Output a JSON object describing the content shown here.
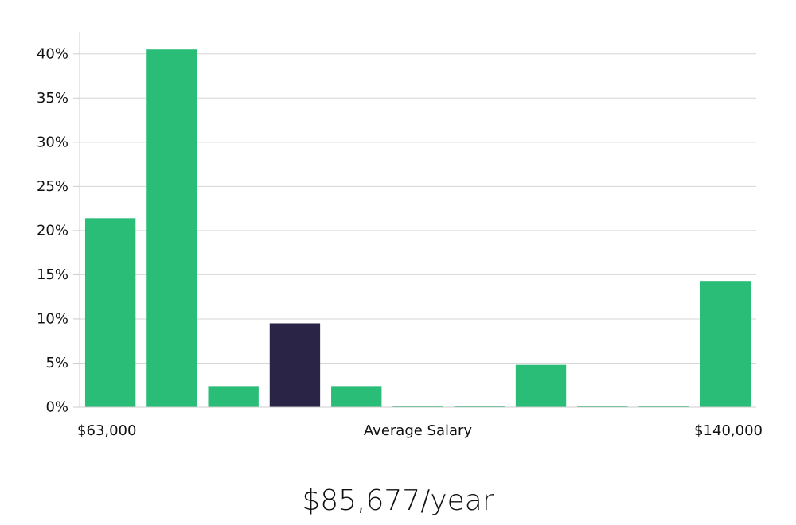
{
  "chart_data": {
    "type": "bar",
    "xlabel": "Average Salary",
    "ylabel": "",
    "ylim": [
      0,
      42.5
    ],
    "yticks": [
      "0%",
      "5%",
      "10%",
      "15%",
      "20%",
      "25%",
      "30%",
      "35%",
      "40%"
    ],
    "ytick_values": [
      0,
      5,
      10,
      15,
      20,
      25,
      30,
      35,
      40
    ],
    "x_start_label": "$63,000",
    "x_end_label": "$140,000",
    "values": [
      21.4,
      40.5,
      2.4,
      9.5,
      2.4,
      0.1,
      0.1,
      4.8,
      0.1,
      0.1,
      14.3
    ],
    "highlight_index": 3,
    "colors": {
      "bar": "#2abd77",
      "highlight": "#2a2546",
      "grid": "#d6d6d6"
    },
    "grid": true
  },
  "summary": {
    "salary_text": "$85,677/year"
  }
}
